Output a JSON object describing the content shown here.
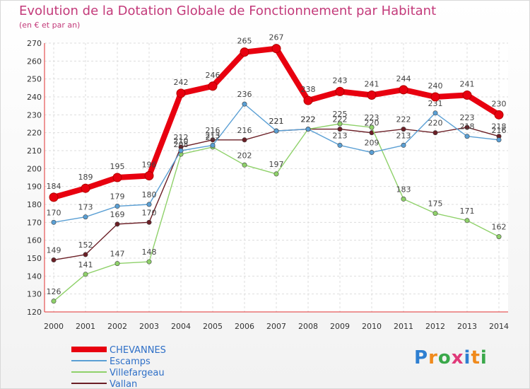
{
  "header": {
    "title": "Evolution de la Dotation Globale de Fonctionnement par Habitant",
    "subtitle": "(en € et par an)"
  },
  "logo": {
    "text": "Proxiti",
    "colors": [
      "#2e7fd1",
      "#f08a1c",
      "#3aa84a",
      "#e03a7a"
    ]
  },
  "chart_data": {
    "type": "line",
    "x": [
      "2000",
      "2001",
      "2002",
      "2003",
      "2004",
      "2005",
      "2006",
      "2007",
      "2008",
      "2009",
      "2010",
      "2011",
      "2012",
      "2013",
      "2014"
    ],
    "ylim": [
      120,
      270
    ],
    "yticks": [
      120,
      130,
      140,
      150,
      160,
      170,
      180,
      190,
      200,
      210,
      220,
      230,
      240,
      250,
      260,
      270
    ],
    "grid": true,
    "legend": "bottom-left",
    "series": [
      {
        "name": "CHEVANNES",
        "color": "#e8000f",
        "values": [
          184,
          189,
          195,
          196,
          242,
          246,
          265,
          267,
          238,
          243,
          241,
          244,
          240,
          241,
          230
        ]
      },
      {
        "name": "Escamps",
        "color": "#5a9fd4",
        "values": [
          170,
          173,
          179,
          180,
          210,
          213,
          236,
          221,
          222,
          213,
          209,
          213,
          231,
          218,
          216
        ]
      },
      {
        "name": "Villefargeau",
        "color": "#8fd16a",
        "values": [
          126,
          141,
          147,
          148,
          208,
          212,
          202,
          197,
          222,
          225,
          223,
          183,
          175,
          171,
          162
        ]
      },
      {
        "name": "Vallan",
        "color": "#6b1f26",
        "values": [
          149,
          152,
          169,
          170,
          212,
          216,
          216,
          221,
          222,
          222,
          220,
          222,
          220,
          223,
          218
        ]
      }
    ]
  }
}
